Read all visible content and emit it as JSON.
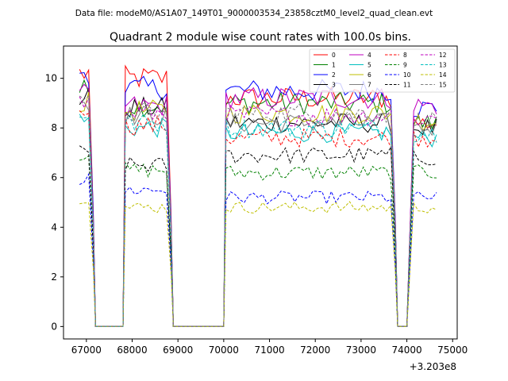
{
  "suptitle": "Data file: modeM0/AS1A07_149T01_9000003534_23858cztM0_level2_quad_clean.evt",
  "chart_data": {
    "type": "line",
    "title": "Quadrant 2 module wise count rates with 100.0s bins.",
    "xlabel": "",
    "ylabel": "",
    "x_offset_label": "+3.203e8",
    "xlim": [
      66500,
      75100
    ],
    "ylim": [
      -0.5,
      11.3
    ],
    "xticks": [
      67000,
      68000,
      69000,
      70000,
      71000,
      72000,
      73000,
      74000,
      75000
    ],
    "yticks": [
      0,
      2,
      4,
      6,
      8,
      10
    ],
    "grid": false,
    "legend": {
      "placement": "top-right",
      "columns": 4
    },
    "segments": [
      {
        "start": 66850,
        "end": 67050
      },
      {
        "start": 67850,
        "end": 68750
      },
      {
        "start": 70050,
        "end": 73650
      },
      {
        "start": 74150,
        "end": 74650
      }
    ],
    "gaps": [
      {
        "start": 67200,
        "end": 67800
      },
      {
        "start": 68900,
        "end": 70000
      },
      {
        "start": 73800,
        "end": 74000
      }
    ],
    "series": [
      {
        "name": "0",
        "color": "#ff0000",
        "dash": false,
        "levels": [
          10.2,
          10.0,
          9.2,
          8.2
        ]
      },
      {
        "name": "1",
        "color": "#008000",
        "dash": false,
        "levels": [
          9.5,
          8.9,
          9.0,
          8.2
        ]
      },
      {
        "name": "2",
        "color": "#0000ff",
        "dash": false,
        "levels": [
          10.3,
          9.6,
          9.5,
          8.8
        ]
      },
      {
        "name": "3",
        "color": "#000000",
        "dash": false,
        "levels": [
          9.2,
          8.8,
          8.2,
          8.0
        ]
      },
      {
        "name": "4",
        "color": "#bf00bf",
        "dash": false,
        "levels": [
          9.3,
          8.9,
          9.2,
          8.9
        ]
      },
      {
        "name": "5",
        "color": "#00bfbf",
        "dash": false,
        "levels": [
          8.3,
          8.0,
          7.8,
          7.6
        ]
      },
      {
        "name": "6",
        "color": "#bfbf00",
        "dash": false,
        "levels": [
          9.0,
          8.7,
          8.6,
          8.3
        ]
      },
      {
        "name": "7",
        "color": "#808080",
        "dash": false,
        "levels": [
          9.1,
          8.5,
          8.2,
          8.0
        ]
      },
      {
        "name": "8",
        "color": "#ff0000",
        "dash": true,
        "levels": [
          8.9,
          8.1,
          7.6,
          7.6
        ]
      },
      {
        "name": "9",
        "color": "#008000",
        "dash": true,
        "levels": [
          7.0,
          6.3,
          6.2,
          6.2
        ]
      },
      {
        "name": "10",
        "color": "#0000ff",
        "dash": true,
        "levels": [
          5.9,
          5.5,
          5.2,
          5.2
        ]
      },
      {
        "name": "11",
        "color": "#000000",
        "dash": true,
        "levels": [
          7.0,
          6.5,
          6.9,
          6.8
        ]
      },
      {
        "name": "12",
        "color": "#bf00bf",
        "dash": true,
        "levels": [
          9.0,
          8.6,
          8.5,
          8.4
        ]
      },
      {
        "name": "13",
        "color": "#00bfbf",
        "dash": true,
        "levels": [
          8.6,
          8.2,
          8.0,
          7.8
        ]
      },
      {
        "name": "14",
        "color": "#bfbf00",
        "dash": true,
        "levels": [
          5.2,
          4.8,
          4.8,
          4.8
        ]
      },
      {
        "name": "15",
        "color": "#808080",
        "dash": true,
        "levels": [
          8.9,
          8.6,
          8.6,
          8.3
        ]
      }
    ]
  }
}
